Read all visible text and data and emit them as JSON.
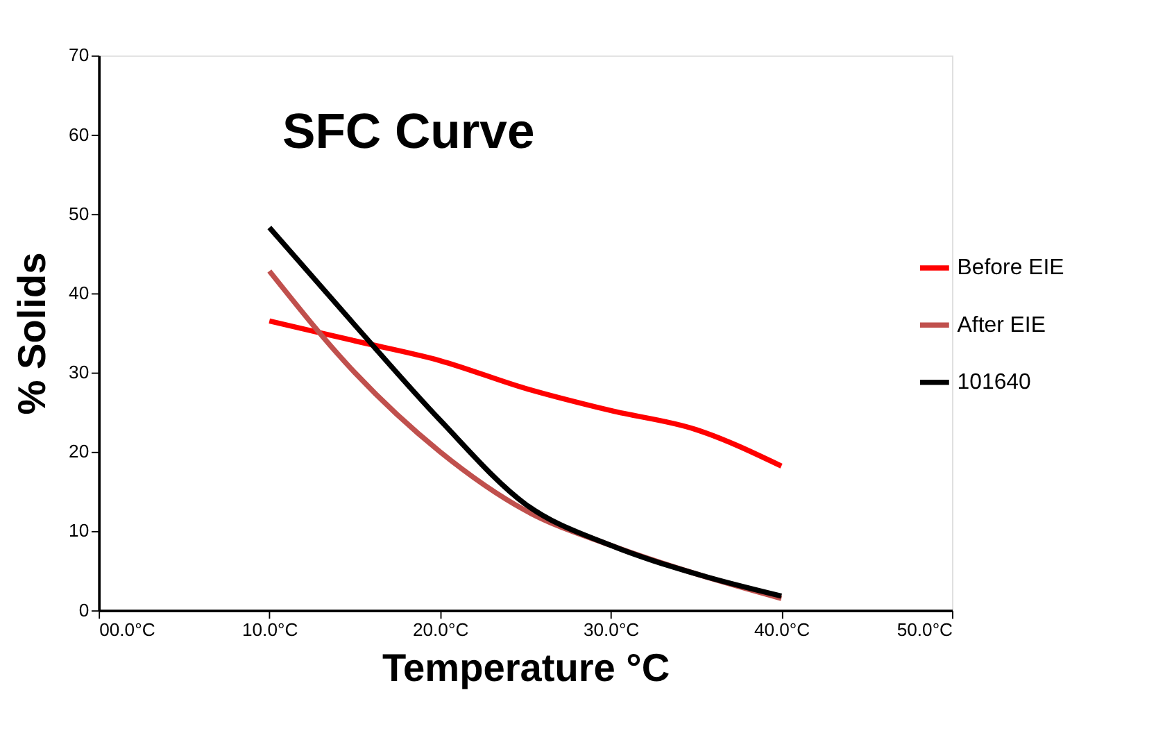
{
  "chart_data": {
    "type": "line",
    "title": "SFC Curve",
    "xlabel": "Temperature °C",
    "ylabel": "% Solids",
    "xlim": [
      0,
      50
    ],
    "xticks": [
      {
        "value": 0,
        "label": "00.0°C"
      },
      {
        "value": 10,
        "label": "10.0°C"
      },
      {
        "value": 20,
        "label": "20.0°C"
      },
      {
        "value": 30,
        "label": "30.0°C"
      },
      {
        "value": 40,
        "label": "40.0°C"
      },
      {
        "value": 50,
        "label": "50.0°C"
      }
    ],
    "ylim": [
      0,
      70
    ],
    "yticks": [
      0,
      10,
      20,
      30,
      40,
      50,
      60,
      70
    ],
    "grid": false,
    "legend": "right",
    "marker": "none",
    "line_style": "solid",
    "x": [
      10,
      15,
      20,
      25,
      30,
      35,
      40
    ],
    "series": [
      {
        "name": "Before EIE",
        "color": "#ff0000",
        "values": [
          36.5,
          34,
          31.5,
          28,
          25.2,
          22.8,
          18.2
        ]
      },
      {
        "name": "After EIE",
        "color": "#c0504d",
        "values": [
          42.8,
          30,
          20,
          12.6,
          8.2,
          4.6,
          1.5
        ]
      },
      {
        "name": "101640",
        "color": "#000000",
        "values": [
          48.3,
          36,
          24,
          13.4,
          8.2,
          4.6,
          1.8
        ]
      }
    ]
  }
}
